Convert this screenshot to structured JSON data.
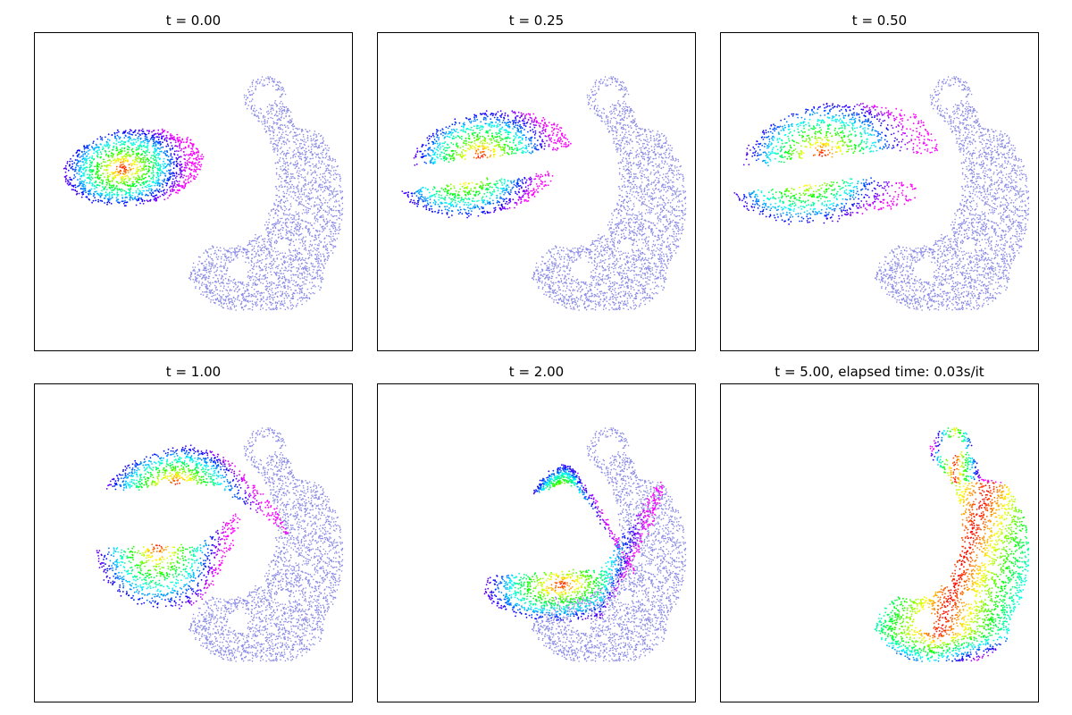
{
  "figure": {
    "panels": [
      {
        "title": "t = 0.00"
      },
      {
        "title": "t = 0.25"
      },
      {
        "title": "t = 0.50"
      },
      {
        "title": "t = 1.00"
      },
      {
        "title": "t = 2.00"
      },
      {
        "title": "t = 5.00, elapsed time: 0.03s/it"
      }
    ]
  },
  "chart_data": [
    {
      "type": "scatter",
      "title": "t = 0.00",
      "t": 0.0,
      "xticks": [],
      "yticks": [],
      "target_color": "#8c8ce6"
    },
    {
      "type": "scatter",
      "title": "t = 0.25",
      "t": 0.25,
      "xticks": [],
      "yticks": [],
      "target_color": "#8c8ce6"
    },
    {
      "type": "scatter",
      "title": "t = 0.50",
      "t": 0.5,
      "xticks": [],
      "yticks": [],
      "target_color": "#8c8ce6"
    },
    {
      "type": "scatter",
      "title": "t = 1.00",
      "t": 1.0,
      "xticks": [],
      "yticks": [],
      "target_color": "#8c8ce6"
    },
    {
      "type": "scatter",
      "title": "t = 2.00",
      "t": 2.0,
      "xticks": [],
      "yticks": [],
      "target_color": "#8c8ce6"
    },
    {
      "type": "scatter",
      "title": "t = 5.00, elapsed time: 0.03s/it",
      "t": 5.0,
      "xticks": [],
      "yticks": [],
      "target_color": "#8c8ce6"
    }
  ]
}
